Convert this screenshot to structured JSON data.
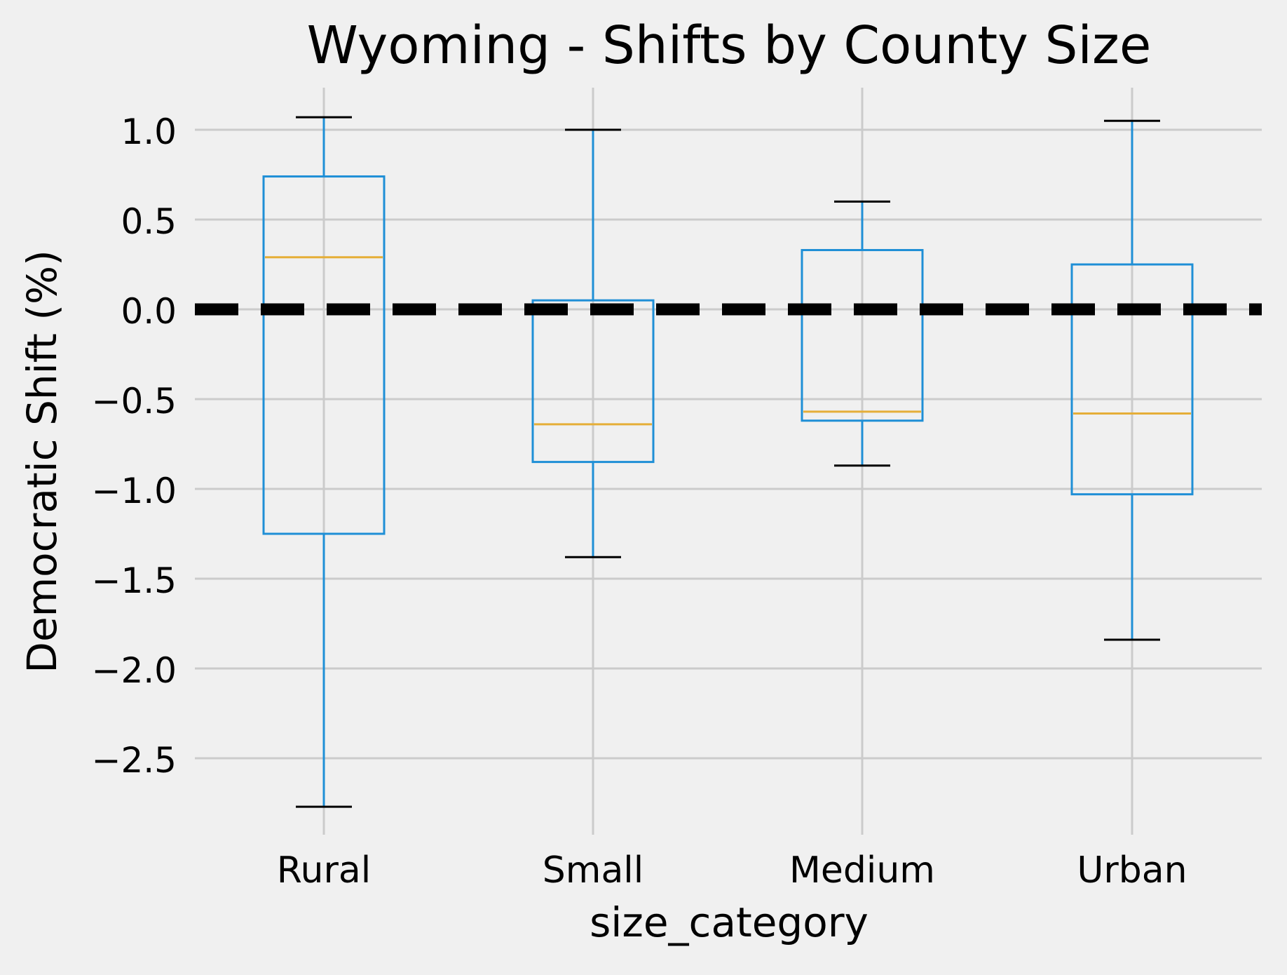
{
  "chart_data": {
    "type": "box",
    "title": "Wyoming - Shifts by County Size",
    "xlabel": "size_category",
    "ylabel": "Democratic Shift (%)",
    "ylim": [
      -2.9,
      1.22
    ],
    "yticks": [
      1.0,
      0.5,
      0.0,
      -0.5,
      -1.0,
      -1.5,
      -2.0,
      -2.5
    ],
    "ytick_labels": [
      "1.0",
      "0.5",
      "0.0",
      "−0.5",
      "−1.0",
      "−1.5",
      "−2.0",
      "−2.5"
    ],
    "categories": [
      "Rural",
      "Small",
      "Medium",
      "Urban"
    ],
    "boxes": [
      {
        "category": "Rural",
        "whisker_low": -2.77,
        "q1": -1.25,
        "median": 0.29,
        "q3": 0.74,
        "whisker_high": 1.07
      },
      {
        "category": "Small",
        "whisker_low": -1.38,
        "q1": -0.85,
        "median": -0.64,
        "q3": 0.05,
        "whisker_high": 1.0
      },
      {
        "category": "Medium",
        "whisker_low": -0.87,
        "q1": -0.62,
        "median": -0.57,
        "q3": 0.33,
        "whisker_high": 0.6
      },
      {
        "category": "Urban",
        "whisker_low": -1.84,
        "q1": -1.03,
        "median": -0.58,
        "q3": 0.25,
        "whisker_high": 1.05
      }
    ],
    "reference_line": {
      "y": 0.0,
      "style": "dashed",
      "color": "#000000"
    },
    "grid": true,
    "colors": {
      "background": "#f0f0f0",
      "grid": "#cbcbcb",
      "box": "#1f8fd6",
      "median": "#e5ae38",
      "cap": "#000000"
    }
  }
}
